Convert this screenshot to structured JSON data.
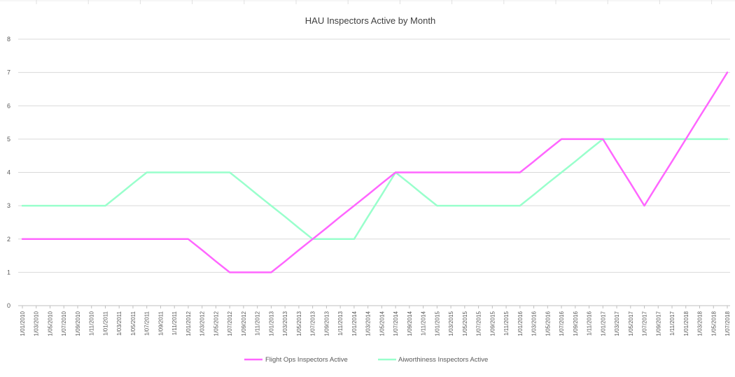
{
  "chart_data": {
    "type": "line",
    "title": "HAU Inspectors Active by Month",
    "xlabel": "",
    "ylabel": "",
    "ylim": [
      0,
      8
    ],
    "yticks": [
      "0",
      "1",
      "2",
      "3",
      "4",
      "5",
      "6",
      "7",
      "8"
    ],
    "grid": true,
    "legend_position": "bottom",
    "categories": [
      "1/01/2010",
      "1/03/2010",
      "1/05/2010",
      "1/07/2010",
      "1/09/2010",
      "1/11/2010",
      "1/01/2011",
      "1/03/2011",
      "1/05/2011",
      "1/07/2011",
      "1/09/2011",
      "1/11/2011",
      "1/01/2012",
      "1/03/2012",
      "1/05/2012",
      "1/07/2012",
      "1/09/2012",
      "1/11/2012",
      "1/01/2013",
      "1/03/2013",
      "1/05/2013",
      "1/07/2013",
      "1/09/2013",
      "1/11/2013",
      "1/01/2014",
      "1/03/2014",
      "1/05/2014",
      "1/07/2014",
      "1/09/2014",
      "1/11/2014",
      "1/01/2015",
      "1/03/2015",
      "1/05/2015",
      "1/07/2015",
      "1/09/2015",
      "1/11/2015",
      "1/01/2016",
      "1/03/2016",
      "1/05/2016",
      "1/07/2016",
      "1/09/2016",
      "1/11/2016",
      "1/01/2017",
      "1/03/2017",
      "1/05/2017",
      "1/07/2017",
      "1/09/2017",
      "1/11/2017",
      "1/01/2018",
      "1/03/2018",
      "1/05/2018",
      "1/07/2018"
    ],
    "series": [
      {
        "name": "Flight Ops Inspectors Active",
        "color": "#ff66ff",
        "values": [
          2,
          2,
          2,
          2,
          2,
          2,
          2,
          2,
          2,
          2,
          2,
          2,
          2,
          1.67,
          1.33,
          1,
          1,
          1,
          1,
          1.33,
          1.67,
          2,
          2.33,
          2.67,
          3,
          3.33,
          3.67,
          4,
          4,
          4,
          4,
          4,
          4,
          4,
          4,
          4,
          4,
          4.33,
          4.67,
          5,
          5,
          5,
          5,
          4.33,
          3.67,
          3,
          3.67,
          4.33,
          5,
          5.67,
          6.33,
          7
        ]
      },
      {
        "name": "Aiworthiness Inspectors Active",
        "color": "#99ffcc",
        "values": [
          3,
          3,
          3,
          3,
          3,
          3,
          3,
          3.33,
          3.67,
          4,
          4,
          4,
          4,
          4,
          4,
          4,
          3.67,
          3.33,
          3,
          2.67,
          2.33,
          2,
          2,
          2,
          2,
          2.67,
          3.33,
          4,
          3.67,
          3.33,
          3,
          3,
          3,
          3,
          3,
          3,
          3,
          3.33,
          3.67,
          4,
          4.33,
          4.67,
          5,
          5,
          5,
          5,
          5,
          5,
          5,
          5,
          5,
          5
        ]
      }
    ]
  }
}
